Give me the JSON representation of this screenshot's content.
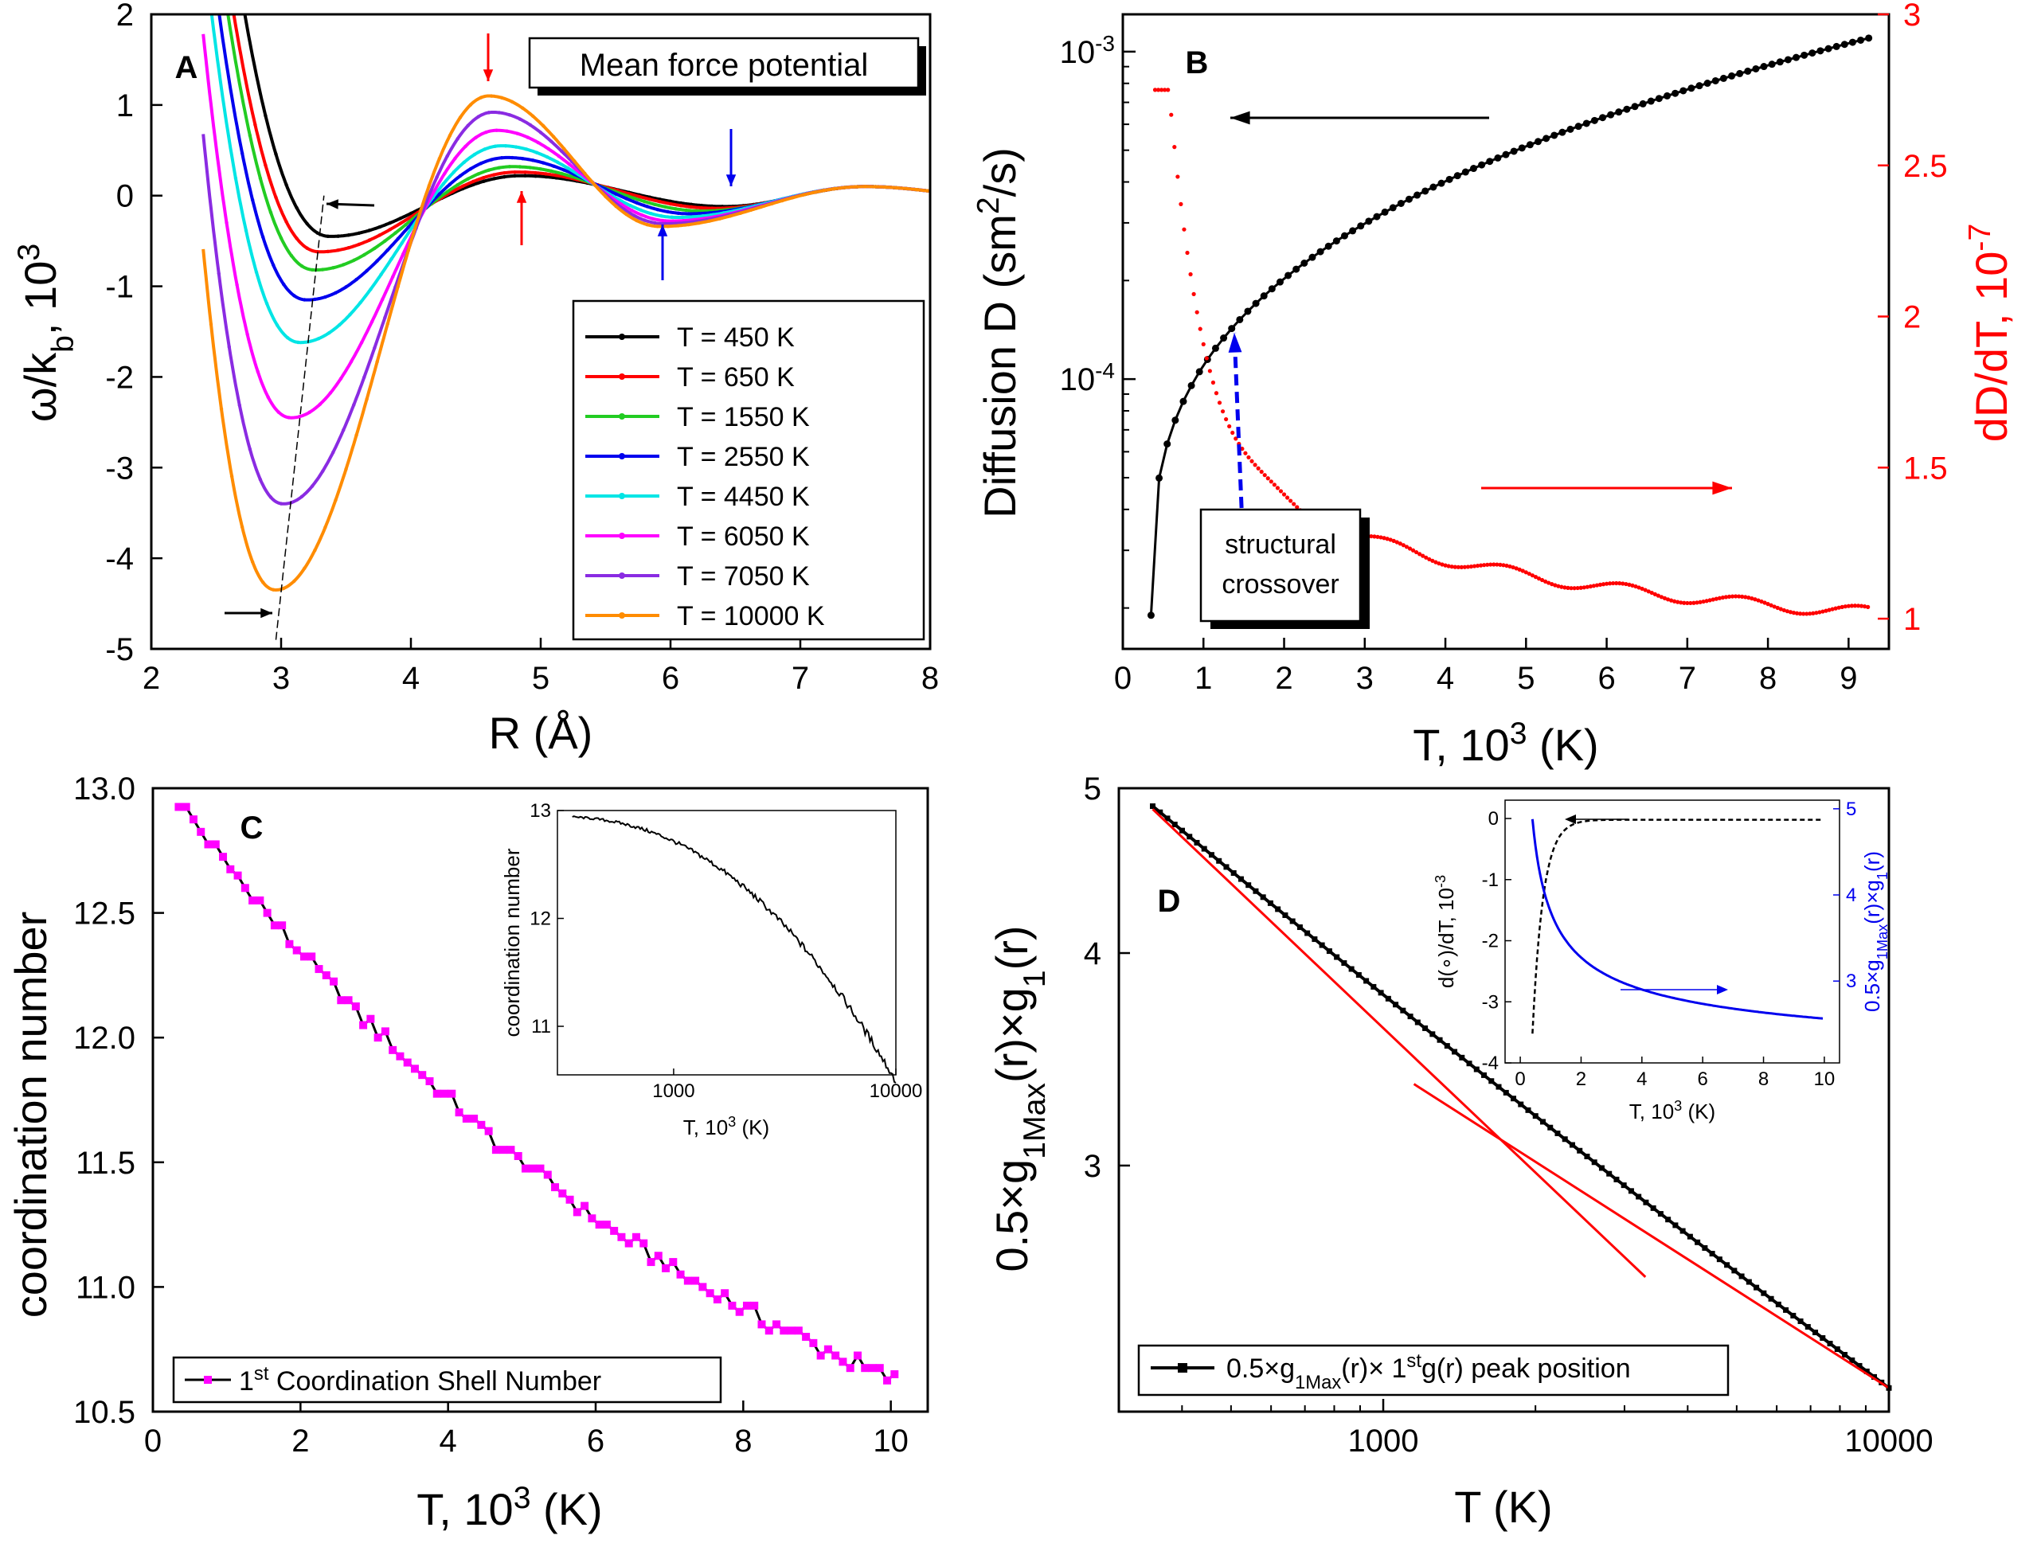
{
  "figure": {
    "panel_letters": [
      "A",
      "B",
      "C",
      "D"
    ]
  },
  "chart_data": [
    {
      "id": "A",
      "type": "line",
      "title": "Mean force potential",
      "xlabel": "R (Å)",
      "ylabel": "ω/k_b, 10^3",
      "xlim": [
        2,
        8
      ],
      "ylim": [
        -5,
        2
      ],
      "xticks": [
        2,
        3,
        4,
        5,
        6,
        7,
        8
      ],
      "yticks": [
        -5,
        -4,
        -3,
        -2,
        -1,
        0,
        1,
        2
      ],
      "series": [
        {
          "name": "T = 450 K",
          "color": "#000000",
          "min_r": 3.38,
          "min_v": -0.45,
          "max_r": 4.85,
          "max_v": 0.22,
          "min2_r": 6.42,
          "min2_v": -0.12
        },
        {
          "name": "T = 650 K",
          "color": "#ff0000",
          "min_r": 3.3,
          "min_v": -0.62,
          "max_r": 4.82,
          "max_v": 0.26,
          "min2_r": 6.35,
          "min2_v": -0.14
        },
        {
          "name": "T = 1550 K",
          "color": "#22cc22",
          "min_r": 3.26,
          "min_v": -0.82,
          "max_r": 4.78,
          "max_v": 0.32,
          "min2_r": 6.25,
          "min2_v": -0.17
        },
        {
          "name": "T = 2550 K",
          "color": "#0000ee",
          "min_r": 3.2,
          "min_v": -1.15,
          "max_r": 4.74,
          "max_v": 0.42,
          "min2_r": 6.15,
          "min2_v": -0.2
        },
        {
          "name": "T = 4450 K",
          "color": "#00e5e5",
          "min_r": 3.15,
          "min_v": -1.62,
          "max_r": 4.7,
          "max_v": 0.55,
          "min2_r": 6.05,
          "min2_v": -0.24
        },
        {
          "name": "T = 6050 K",
          "color": "#ff00ff",
          "min_r": 3.08,
          "min_v": -2.45,
          "max_r": 4.66,
          "max_v": 0.72,
          "min2_r": 6.0,
          "min2_v": -0.28
        },
        {
          "name": "T = 7050 K",
          "color": "#8a2be2",
          "min_r": 3.02,
          "min_v": -3.4,
          "max_r": 4.63,
          "max_v": 0.92,
          "min2_r": 5.95,
          "min2_v": -0.31
        },
        {
          "name": "T = 10000 K",
          "color": "#ff8c00",
          "min_r": 2.96,
          "min_v": -4.35,
          "max_r": 4.6,
          "max_v": 1.1,
          "min2_r": 5.92,
          "min2_v": -0.34
        }
      ]
    },
    {
      "id": "B",
      "type": "scatter",
      "xlabel": "T, 10^3 (K)",
      "ylabel_left": "Diffusion D (sm^2/s)",
      "ylabel_right": "dD/dT, 10^-7",
      "xlim": [
        0,
        9.5
      ],
      "ylim_left_log": [
        1.5e-05,
        0.0013
      ],
      "ylim_right": [
        0.9,
        3.0
      ],
      "xticks": [
        0,
        1,
        2,
        3,
        4,
        5,
        6,
        7,
        8,
        9
      ],
      "yticks_left": [
        "10^-4",
        "10^-3"
      ],
      "yticks_right": [
        1,
        1.5,
        2,
        2.5,
        3
      ],
      "annotation": "structural crossover",
      "series": [
        {
          "name": "Diffusion D",
          "color": "#000000",
          "x_range": [
            0.35,
            9.25
          ],
          "y_range": [
            1.9e-05,
            0.0011
          ]
        },
        {
          "name": "dD/dT",
          "color": "#ff0000",
          "x_range": [
            0.4,
            9.25
          ],
          "y_range": [
            2.75,
            0.97
          ]
        }
      ]
    },
    {
      "id": "C",
      "type": "line",
      "xlabel": "T, 10^3 (K)",
      "ylabel": "coordination number",
      "xlim": [
        0,
        10.5
      ],
      "ylim": [
        10.5,
        13.0
      ],
      "xticks": [
        0,
        2,
        4,
        6,
        8,
        10
      ],
      "yticks": [
        "10.5",
        "11.0",
        "11.5",
        "12.0",
        "12.5",
        "13.0"
      ],
      "legend": "1st Coordination Shell Number",
      "color": "#ff00ff",
      "x_range": [
        0.35,
        10.05
      ],
      "y_range": [
        12.94,
        10.62
      ],
      "inset": {
        "xlabel": "T, 10^3 (K)",
        "ylabel": "coordination number",
        "xticks": [
          "1000",
          "10000"
        ],
        "yticks": [
          "11",
          "12",
          "13"
        ]
      }
    },
    {
      "id": "D",
      "type": "line",
      "xlabel": "T (K)",
      "ylabel": "0.5×g_1Max(r)×g_1(r)",
      "xscale": "log",
      "xlim": [
        300,
        10000
      ],
      "ylim": [
        2.15,
        5.0
      ],
      "xticks": [
        "1000",
        "10000"
      ],
      "yticks": [
        "3",
        "4",
        "5"
      ],
      "legend": "0.5×g1Max(r)× 1st g(r) peak position",
      "x_range": [
        350,
        10000
      ],
      "y_range": [
        4.88,
        2.22
      ],
      "inset": {
        "xlabel": "T, 10^3 (K)",
        "ylabel_left": "d(∘)/dT, 10^-3",
        "ylabel_right": "0.5×g1Max(r)×g1(r)",
        "xticks": [
          "0",
          "2",
          "4",
          "6",
          "8",
          "10"
        ],
        "yticks_left": [
          "-4",
          "-3",
          "-2",
          "-1",
          "0"
        ],
        "yticks_right": [
          "3",
          "4",
          "5"
        ]
      }
    }
  ]
}
